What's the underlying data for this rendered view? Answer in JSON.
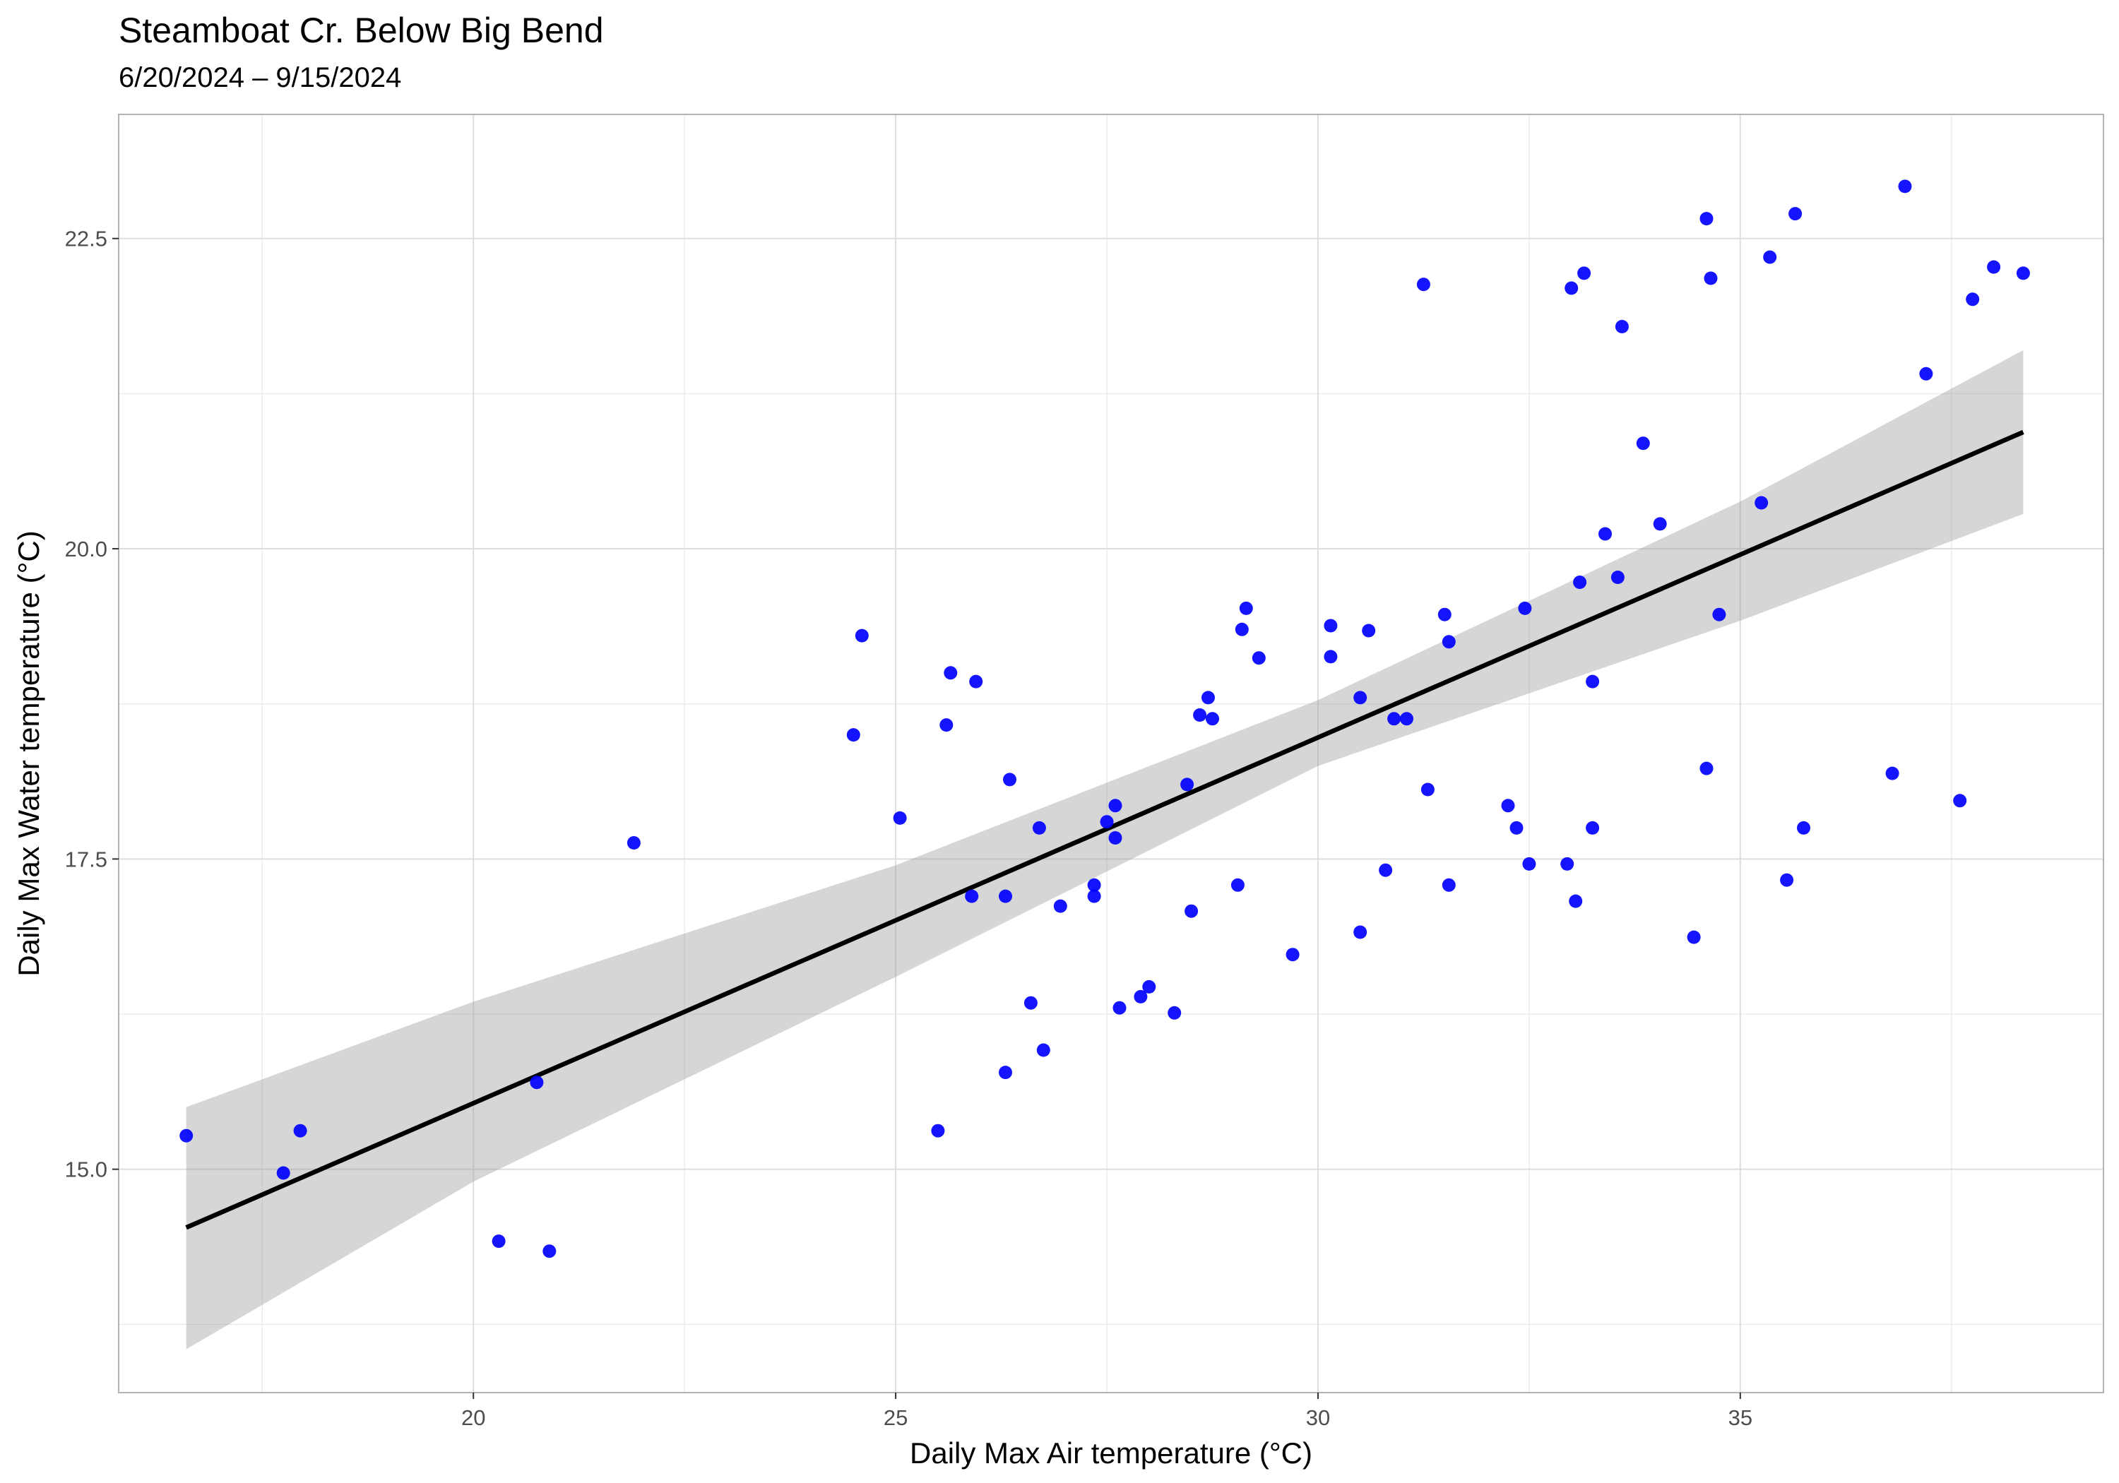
{
  "chart_data": {
    "type": "scatter",
    "title": "Steamboat Cr. Below Big Bend",
    "subtitle": "6/20/2024 – 9/15/2024",
    "xlabel": "Daily Max Air temperature (°C)",
    "ylabel": "Daily Max Water temperature (°C)",
    "xlim": [
      15.8,
      39.3
    ],
    "ylim": [
      13.2,
      23.5
    ],
    "x_ticks": [
      "20",
      "25",
      "30",
      "35"
    ],
    "y_ticks": [
      "15.0",
      "17.5",
      "20.0",
      "22.5"
    ],
    "grid": true,
    "point_color": "#0000ff",
    "fit": {
      "method": "linear regression",
      "color": "#000000",
      "band_color": "#999999",
      "line": [
        [
          16.6,
          14.53
        ],
        [
          38.35,
          20.94
        ]
      ],
      "band": [
        {
          "x": 16.6,
          "lower": 13.55,
          "upper": 15.5
        },
        {
          "x": 20.0,
          "lower": 14.9,
          "upper": 16.35
        },
        {
          "x": 25.0,
          "lower": 16.55,
          "upper": 17.45
        },
        {
          "x": 30.0,
          "lower": 18.25,
          "upper": 18.78
        },
        {
          "x": 35.0,
          "lower": 19.42,
          "upper": 20.38
        },
        {
          "x": 38.35,
          "lower": 20.28,
          "upper": 21.6
        }
      ]
    },
    "series": [
      {
        "points": [
          [
            16.6,
            15.27
          ],
          [
            17.75,
            14.97
          ],
          [
            17.95,
            15.31
          ],
          [
            20.3,
            14.42
          ],
          [
            20.75,
            15.7
          ],
          [
            20.9,
            14.34
          ],
          [
            21.9,
            17.63
          ],
          [
            24.5,
            18.5
          ],
          [
            24.6,
            19.3
          ],
          [
            25.05,
            17.83
          ],
          [
            25.5,
            15.31
          ],
          [
            25.6,
            18.58
          ],
          [
            25.65,
            19.0
          ],
          [
            25.9,
            17.2
          ],
          [
            25.95,
            18.93
          ],
          [
            26.3,
            17.2
          ],
          [
            26.3,
            15.78
          ],
          [
            26.35,
            18.14
          ],
          [
            26.6,
            16.34
          ],
          [
            26.7,
            17.75
          ],
          [
            26.75,
            15.96
          ],
          [
            26.95,
            17.12
          ],
          [
            27.35,
            17.29
          ],
          [
            27.35,
            17.2
          ],
          [
            27.5,
            17.8
          ],
          [
            27.6,
            17.93
          ],
          [
            27.6,
            17.67
          ],
          [
            27.65,
            16.3
          ],
          [
            27.9,
            16.39
          ],
          [
            28.0,
            16.47
          ],
          [
            28.3,
            16.26
          ],
          [
            28.45,
            18.1
          ],
          [
            28.5,
            17.08
          ],
          [
            28.6,
            18.66
          ],
          [
            28.7,
            18.8
          ],
          [
            28.75,
            18.63
          ],
          [
            29.05,
            17.29
          ],
          [
            29.1,
            19.35
          ],
          [
            29.15,
            19.52
          ],
          [
            29.3,
            19.12
          ],
          [
            29.7,
            16.73
          ],
          [
            30.15,
            19.38
          ],
          [
            30.15,
            19.13
          ],
          [
            30.5,
            16.91
          ],
          [
            30.5,
            18.8
          ],
          [
            30.6,
            19.34
          ],
          [
            30.8,
            17.41
          ],
          [
            30.9,
            18.63
          ],
          [
            31.05,
            18.63
          ],
          [
            31.25,
            22.13
          ],
          [
            31.3,
            18.06
          ],
          [
            31.5,
            19.47
          ],
          [
            31.55,
            19.25
          ],
          [
            31.55,
            17.29
          ],
          [
            32.25,
            17.93
          ],
          [
            32.35,
            17.75
          ],
          [
            32.45,
            19.52
          ],
          [
            32.5,
            17.46
          ],
          [
            32.95,
            17.46
          ],
          [
            33.0,
            22.1
          ],
          [
            33.05,
            17.16
          ],
          [
            33.1,
            19.73
          ],
          [
            33.15,
            22.22
          ],
          [
            33.25,
            17.75
          ],
          [
            33.25,
            18.93
          ],
          [
            33.4,
            20.12
          ],
          [
            33.55,
            19.77
          ],
          [
            33.6,
            21.79
          ],
          [
            33.85,
            20.85
          ],
          [
            34.05,
            20.2
          ],
          [
            34.45,
            16.87
          ],
          [
            34.6,
            22.66
          ],
          [
            34.6,
            18.23
          ],
          [
            34.65,
            22.18
          ],
          [
            34.75,
            19.47
          ],
          [
            35.25,
            20.37
          ],
          [
            35.35,
            22.35
          ],
          [
            35.55,
            17.33
          ],
          [
            35.65,
            22.7
          ],
          [
            35.75,
            17.75
          ],
          [
            36.8,
            18.19
          ],
          [
            36.95,
            22.92
          ],
          [
            37.2,
            21.41
          ],
          [
            37.6,
            17.97
          ],
          [
            37.75,
            22.01
          ],
          [
            38.0,
            22.27
          ],
          [
            38.35,
            22.22
          ]
        ]
      }
    ]
  }
}
